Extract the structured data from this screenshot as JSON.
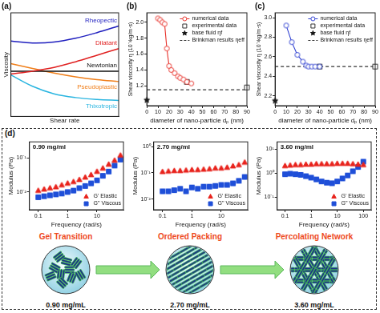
{
  "chart_data": [
    {
      "type": "line",
      "title": "(a)",
      "x_label": "Shear rate",
      "y_label": "Viscosity",
      "x": [
        0,
        2,
        4,
        6,
        8,
        10
      ],
      "xlim": [
        0,
        10
      ],
      "ylim": [
        0,
        11
      ],
      "tick_labels": false,
      "grid": false,
      "legend": "inline",
      "series": [
        {
          "name": "Rheopectic",
          "color": "#1f1fbf",
          "values": [
            8.0,
            7.8,
            7.9,
            8.3,
            8.9,
            9.6
          ]
        },
        {
          "name": "Dilatant",
          "color": "#e02020",
          "values": [
            4.5,
            4.8,
            5.2,
            5.8,
            6.5,
            7.2
          ]
        },
        {
          "name": "Newtonian",
          "color": "#111111",
          "values": [
            4.8,
            4.8,
            4.8,
            4.8,
            4.8,
            4.8
          ]
        },
        {
          "name": "Pseudoplastic",
          "color": "#f07f1a",
          "values": [
            5.6,
            5.1,
            4.6,
            4.2,
            3.9,
            3.7
          ]
        },
        {
          "name": "Thixotropic",
          "color": "#2ab5e0",
          "values": [
            4.4,
            3.2,
            2.4,
            2.0,
            1.8,
            1.7
          ]
        }
      ]
    },
    {
      "type": "scatter",
      "title": "(b)",
      "x_label": "diameter of nano-particle dₚ (nm)",
      "y_label": "Shear viscosity η (10⁻³kg/m·s)",
      "xlim": [
        0,
        90
      ],
      "xticks": [
        0,
        10,
        20,
        30,
        40,
        50,
        60,
        70,
        80,
        90
      ],
      "ylim": [
        0.95,
        2.12
      ],
      "yticks": [
        1.2,
        1.4,
        1.6,
        1.8,
        {
          "value": 2,
          "label": "2.0"
        }
      ],
      "grid": false,
      "legend": "upper right",
      "series": [
        {
          "name": "numerical data",
          "color": "#e8322b",
          "marker": "circle_open",
          "line_style": "solid",
          "x": [
            10,
            12,
            14,
            16,
            18,
            20,
            22,
            25,
            28,
            30,
            33,
            36,
            40
          ],
          "values": [
            2.05,
            2.03,
            2.0,
            1.98,
            1.67,
            1.45,
            1.4,
            1.36,
            1.32,
            1.3,
            1.28,
            1.25,
            1.23
          ]
        },
        {
          "name": "experimental data",
          "color": "#333333",
          "marker": "square_open",
          "line_style": "none",
          "x": [
            36,
            90
          ],
          "values": [
            1.25,
            1.18
          ]
        },
        {
          "name": "base fluid ηf",
          "color": "#111111",
          "marker": "star",
          "line_style": "none",
          "x": [
            0
          ],
          "values": [
            1.02
          ]
        },
        {
          "name": "Brinkman results ηeff",
          "color": "#333333",
          "marker": "none",
          "line_style": "dashed",
          "x": [
            0,
            90
          ],
          "values": [
            1.15,
            1.15
          ]
        }
      ]
    },
    {
      "type": "scatter",
      "title": "(c)",
      "x_label": "diameter of nano-particle dₚ (nm)",
      "y_label": "Shear viscosity η (10⁻³kg/m·s)",
      "xlim": [
        0,
        90
      ],
      "xticks": [
        0,
        10,
        20,
        30,
        40,
        50,
        60,
        70,
        80,
        90
      ],
      "ylim": [
        2.1,
        3.05
      ],
      "yticks": [
        2.2,
        2.4,
        2.6,
        2.8,
        {
          "value": 3,
          "label": "3.0"
        }
      ],
      "grid": false,
      "legend": "upper right",
      "series": [
        {
          "name": "numerical data",
          "color": "#2e3fd1",
          "marker": "circle_open",
          "line_style": "solid",
          "x": [
            10,
            15,
            20,
            25,
            28,
            30,
            33,
            36,
            40
          ],
          "values": [
            2.92,
            2.75,
            2.62,
            2.55,
            2.51,
            2.5,
            2.5,
            2.5,
            2.5
          ]
        },
        {
          "name": "experimental data",
          "color": "#333333",
          "marker": "square_open",
          "line_style": "none",
          "x": [
            40,
            90
          ],
          "values": [
            2.5,
            2.5
          ]
        },
        {
          "name": "base fluid ηf",
          "color": "#111111",
          "marker": "star",
          "line_style": "none",
          "x": [
            0
          ],
          "values": [
            2.15
          ]
        },
        {
          "name": "Brinkman results ηeff",
          "color": "#333333",
          "marker": "none",
          "line_style": "dashed",
          "x": [
            0,
            90
          ],
          "values": [
            2.5,
            2.5
          ]
        }
      ]
    },
    {
      "type": "scatter",
      "annotations": [
        "0.90 mg/ml"
      ],
      "x_label": "Frequency (rad/s)",
      "y_label": "Modulus (Pa)",
      "log": true,
      "xlim": [
        0.05,
        80
      ],
      "xticks": [
        0.1,
        1,
        10
      ],
      "ylim": [
        0.003,
        0.3
      ],
      "yticks": [
        {
          "value": 0.01,
          "label": "10⁻²"
        },
        {
          "value": 0.1,
          "label": "10⁻¹"
        }
      ],
      "grid": false,
      "legend": "lower right",
      "x": [
        0.1,
        0.158,
        0.251,
        0.398,
        0.631,
        1,
        1.585,
        2.512,
        3.981,
        6.31,
        10,
        15.85,
        25.12,
        39.81,
        63.1
      ],
      "series": [
        {
          "name": "G' Elastic",
          "color": "#e8231c",
          "marker": "triangle",
          "line_style": "none",
          "values": [
            0.011,
            0.012,
            0.013,
            0.014,
            0.016,
            0.018,
            0.02,
            0.023,
            0.027,
            0.032,
            0.04,
            0.05,
            0.065,
            0.085,
            0.12
          ]
        },
        {
          "name": "G'' Viscous",
          "color": "#1f4fd8",
          "marker": "square",
          "line_style": "none",
          "values": [
            0.007,
            0.0075,
            0.008,
            0.0085,
            0.009,
            0.01,
            0.011,
            0.013,
            0.015,
            0.018,
            0.022,
            0.03,
            0.04,
            0.06,
            0.09
          ]
        }
      ]
    },
    {
      "type": "scatter",
      "annotations": [
        "2.70 mg/ml"
      ],
      "x_label": "Frequency (rad/s)",
      "y_label": "Modulus (Pa)",
      "log": true,
      "xlim": [
        0.05,
        80
      ],
      "xticks": [
        0.1,
        1,
        10
      ],
      "ylim": [
        0.004,
        1.5
      ],
      "yticks": [
        {
          "value": 0.01,
          "label": "10⁻²"
        },
        {
          "value": 0.1,
          "label": "10⁻¹"
        },
        {
          "value": 1,
          "label": "10⁰"
        }
      ],
      "grid": false,
      "legend": "lower right",
      "x": [
        0.1,
        0.158,
        0.251,
        0.398,
        0.631,
        1,
        1.585,
        2.512,
        3.981,
        6.31,
        10,
        15.85,
        25.12,
        39.81,
        63.1
      ],
      "series": [
        {
          "name": "G' Elastic",
          "color": "#e8231c",
          "marker": "triangle",
          "line_style": "none",
          "values": [
            0.11,
            0.115,
            0.12,
            0.12,
            0.125,
            0.13,
            0.13,
            0.135,
            0.14,
            0.15,
            0.15,
            0.16,
            0.18,
            0.2,
            0.25
          ]
        },
        {
          "name": "G'' Viscous",
          "color": "#1f4fd8",
          "marker": "square",
          "line_style": "none",
          "values": [
            0.02,
            0.02,
            0.022,
            0.025,
            0.02,
            0.028,
            0.025,
            0.03,
            0.03,
            0.032,
            0.035,
            0.035,
            0.04,
            0.05,
            0.07
          ]
        }
      ]
    },
    {
      "type": "scatter",
      "annotations": [
        "3.60 mg/ml"
      ],
      "x_label": "Frequency (rad/s)",
      "y_label": "Modulus (Pa)",
      "log": true,
      "xlim": [
        0.05,
        200
      ],
      "xticks": [
        0.1,
        1,
        10,
        100
      ],
      "ylim": [
        0.03,
        20
      ],
      "yticks": [
        {
          "value": 0.1,
          "label": "10⁻¹"
        },
        {
          "value": 1,
          "label": "10⁰"
        },
        {
          "value": 10,
          "label": "10¹"
        }
      ],
      "grid": false,
      "legend": "lower right",
      "x": [
        0.1,
        0.158,
        0.251,
        0.398,
        0.631,
        1,
        1.585,
        2.512,
        3.981,
        6.31,
        10,
        15.85,
        25.12,
        39.81,
        63.1,
        100
      ],
      "series": [
        {
          "name": "G' Elastic",
          "color": "#e8231c",
          "marker": "triangle",
          "line_style": "none",
          "values": [
            2.0,
            2.1,
            2.2,
            2.2,
            2.3,
            2.3,
            2.4,
            2.4,
            2.4,
            2.4,
            2.5,
            2.5,
            2.5,
            2.4,
            2.3,
            2.2
          ]
        },
        {
          "name": "G'' Viscous",
          "color": "#1f4fd8",
          "marker": "square",
          "line_style": "none",
          "values": [
            0.9,
            0.95,
            0.9,
            0.85,
            0.75,
            0.65,
            0.55,
            0.45,
            0.4,
            0.38,
            0.45,
            0.6,
            0.8,
            1.2,
            1.8,
            3.0
          ]
        }
      ]
    }
  ],
  "diagram": {
    "panel_label": "(d)",
    "stages": [
      {
        "label": "Gel Transition",
        "concentration": "0.90 mg/mL"
      },
      {
        "label": "Ordered Packing",
        "concentration": "2.70 mg/mL"
      },
      {
        "label": "Percolating Network",
        "concentration": "3.60 mg/mL"
      }
    ]
  }
}
